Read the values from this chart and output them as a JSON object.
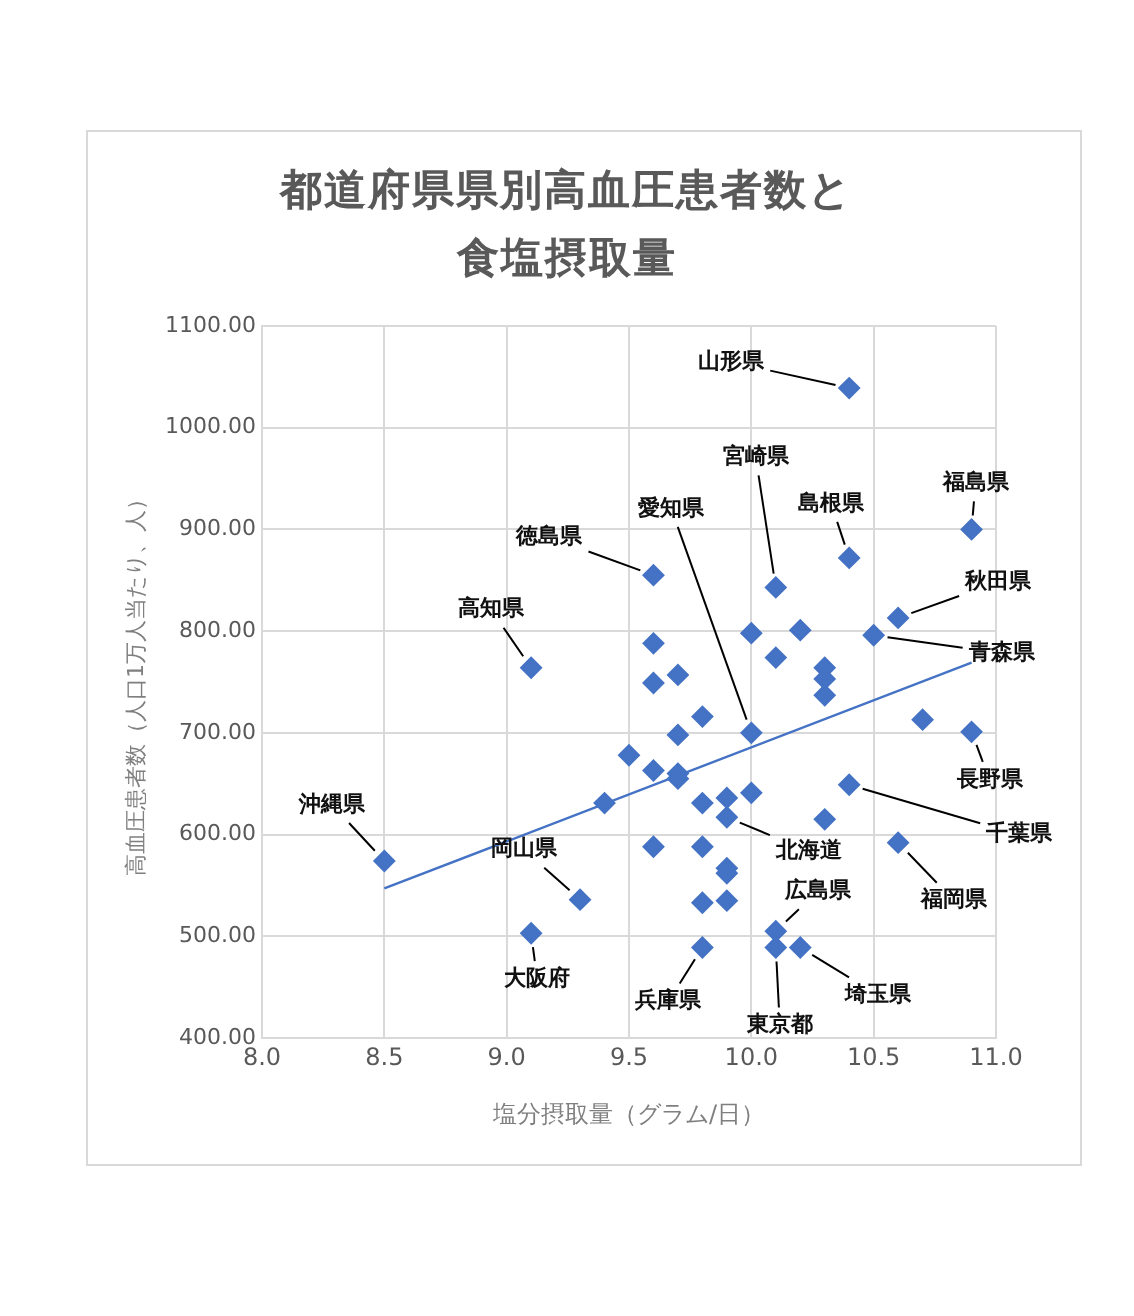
{
  "chart_data": {
    "type": "scatter",
    "title": "都道府県県別高血圧患者数と食塩摂取量",
    "xlabel": "塩分摂取量（グラム/日）",
    "ylabel": "高血圧患者数（人口1万人当たり、人）",
    "xlim": [
      8,
      11
    ],
    "xticks": [
      {
        "value": 8,
        "label": "8.0"
      },
      {
        "value": 8.5,
        "label": "8.5"
      },
      {
        "value": 9,
        "label": "9.0"
      },
      {
        "value": 9.5,
        "label": "9.5"
      },
      {
        "value": 10,
        "label": "10.0"
      },
      {
        "value": 10.5,
        "label": "10.5"
      },
      {
        "value": 11,
        "label": "11.0"
      }
    ],
    "ylim": [
      400,
      1100
    ],
    "yticks": [
      {
        "value": 400,
        "label": "400.00"
      },
      {
        "value": 500,
        "label": "500.00"
      },
      {
        "value": 600,
        "label": "600.00"
      },
      {
        "value": 700,
        "label": "700.00"
      },
      {
        "value": 800,
        "label": "800.00"
      },
      {
        "value": 900,
        "label": "900.00"
      },
      {
        "value": 1000,
        "label": "1000.00"
      },
      {
        "value": 1100,
        "label": "1100.00"
      }
    ],
    "grid": true,
    "marker": "diamond",
    "legend": false,
    "series": [
      {
        "color": "#4472c4",
        "x": [
          10.4,
          10.9,
          10.4,
          10.1,
          9.6,
          10.6,
          9.1,
          10.0,
          10.2,
          10.5,
          10.1,
          9.6,
          9.7,
          9.6,
          10.3,
          10.3,
          10.3,
          9.8,
          10.7,
          9.7,
          10.0,
          10.9,
          9.5,
          9.6,
          9.7,
          9.7,
          10.4,
          9.4,
          9.8,
          9.9,
          10.0,
          9.9,
          10.3,
          8.5,
          9.6,
          9.8,
          10.6,
          9.9,
          9.9,
          9.3,
          9.8,
          9.9,
          9.1,
          10.1,
          9.8,
          10.1,
          10.2
        ],
        "values": [
          1039,
          900,
          872,
          843,
          855,
          813,
          764,
          798,
          801,
          796,
          774,
          788,
          757,
          749,
          764,
          753,
          737,
          716,
          713,
          698,
          700,
          701,
          678,
          663,
          660,
          655,
          649,
          631,
          631,
          636,
          641,
          617,
          615,
          574,
          588,
          588,
          592,
          567,
          562,
          536,
          533,
          535,
          503,
          505,
          489,
          489,
          489
        ]
      },
      {
        "type": "line",
        "color": "#4472c4",
        "marker": "none",
        "x": [
          8.5,
          10.9
        ],
        "values": [
          547,
          769
        ]
      }
    ],
    "annotations": [
      {
        "text": "山形県",
        "x": 10.4,
        "y": 1039
      },
      {
        "text": "宮崎県",
        "x": 10.1,
        "y": 843
      },
      {
        "text": "島根県",
        "x": 10.4,
        "y": 872
      },
      {
        "text": "福島県",
        "x": 10.9,
        "y": 900
      },
      {
        "text": "徳島県",
        "x": 9.6,
        "y": 855
      },
      {
        "text": "愛知県",
        "x": 10.0,
        "y": 700
      },
      {
        "text": "秋田県",
        "x": 10.6,
        "y": 813
      },
      {
        "text": "高知県",
        "x": 9.1,
        "y": 764
      },
      {
        "text": "青森県",
        "x": 10.5,
        "y": 796
      },
      {
        "text": "長野県",
        "x": 10.9,
        "y": 701
      },
      {
        "text": "千葉県",
        "x": 10.4,
        "y": 649
      },
      {
        "text": "沖縄県",
        "x": 8.5,
        "y": 574
      },
      {
        "text": "岡山県",
        "x": 9.3,
        "y": 536
      },
      {
        "text": "北海道",
        "x": 9.9,
        "y": 617
      },
      {
        "text": "広島県",
        "x": 10.1,
        "y": 505
      },
      {
        "text": "福岡県",
        "x": 10.6,
        "y": 592
      },
      {
        "text": "大阪府",
        "x": 9.1,
        "y": 503
      },
      {
        "text": "兵庫県",
        "x": 9.8,
        "y": 489
      },
      {
        "text": "東京都",
        "x": 10.1,
        "y": 489
      },
      {
        "text": "埼玉県",
        "x": 10.2,
        "y": 489
      }
    ]
  }
}
